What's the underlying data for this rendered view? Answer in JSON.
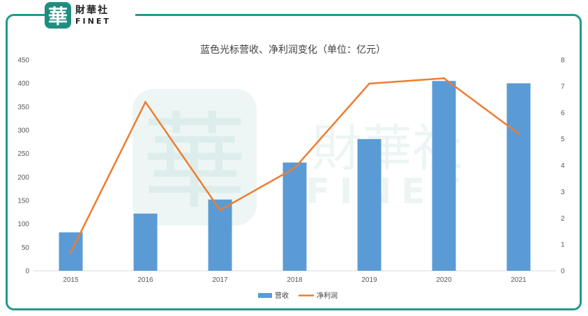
{
  "logo": {
    "glyph": "華",
    "name_cn": "財華社",
    "name_en": "FINET"
  },
  "colors": {
    "bar": "#5b9bd5",
    "line": "#ed7d31",
    "frame": "#1e9a8c"
  },
  "chart_data": {
    "type": "bar",
    "title": "蓝色光标营收、净利润变化（单位：亿元）",
    "categories": [
      "2015",
      "2016",
      "2017",
      "2018",
      "2019",
      "2020",
      "2021"
    ],
    "series": [
      {
        "name": "营收",
        "type": "bar",
        "axis": "left",
        "values": [
          82,
          122,
          152,
          231,
          281,
          405,
          400
        ]
      },
      {
        "name": "净利润",
        "type": "line",
        "axis": "right",
        "values": [
          0.7,
          6.4,
          2.3,
          3.9,
          7.1,
          7.3,
          5.2
        ]
      }
    ],
    "y_left": {
      "min": 0,
      "max": 450,
      "ticks": [
        "0",
        "50",
        "100",
        "150",
        "200",
        "250",
        "300",
        "350",
        "400",
        "450"
      ]
    },
    "y_right": {
      "min": 0,
      "max": 8,
      "ticks": [
        "0",
        "1",
        "2",
        "3",
        "4",
        "5",
        "6",
        "7",
        "8"
      ]
    },
    "legend": "bottom",
    "grid": false
  }
}
